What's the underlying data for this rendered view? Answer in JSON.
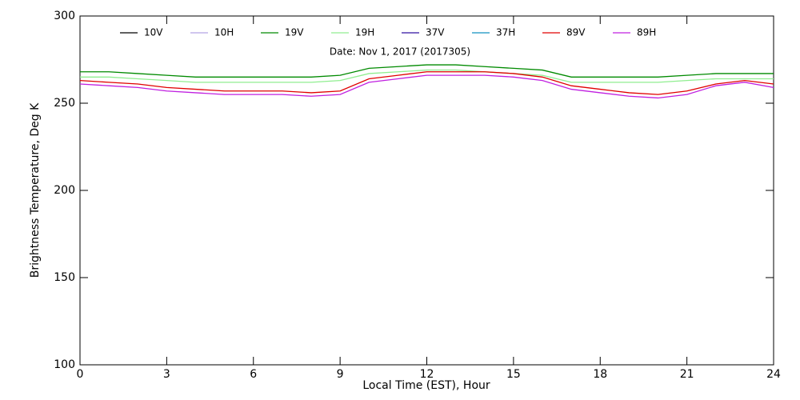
{
  "chart_data": {
    "type": "line",
    "subtitle": "Date: Nov  1, 2017 (2017305)",
    "xlabel": "Local Time (EST), Hour",
    "ylabel": "Brightness Temperature, Deg K",
    "x": [
      0,
      1,
      2,
      3,
      4,
      5,
      6,
      7,
      8,
      9,
      10,
      11,
      12,
      13,
      14,
      15,
      16,
      17,
      18,
      19,
      20,
      21,
      22,
      23,
      24
    ],
    "xlim": [
      0,
      24
    ],
    "xticks": [
      0,
      3,
      6,
      9,
      12,
      15,
      18,
      21,
      24
    ],
    "ylim": [
      100,
      300
    ],
    "yticks": [
      100,
      150,
      200,
      250,
      300
    ],
    "legend": "top",
    "series": [
      {
        "name": "10V",
        "color": "#000000",
        "values": [
          null,
          null,
          null,
          null,
          null,
          null,
          null,
          null,
          null,
          null,
          null,
          null,
          null,
          null,
          null,
          null,
          null,
          null,
          null,
          null,
          null,
          null,
          null,
          null,
          null
        ]
      },
      {
        "name": "10H",
        "color": "#b4a4e4",
        "values": [
          null,
          null,
          null,
          null,
          null,
          null,
          null,
          null,
          null,
          null,
          null,
          null,
          null,
          null,
          null,
          null,
          null,
          null,
          null,
          null,
          null,
          null,
          null,
          null,
          null
        ]
      },
      {
        "name": "19V",
        "color": "#008a00",
        "values": [
          268,
          268,
          267,
          266,
          265,
          265,
          265,
          265,
          265,
          266,
          270,
          271,
          272,
          272,
          271,
          270,
          269,
          265,
          265,
          265,
          265,
          266,
          267,
          267,
          267
        ]
      },
      {
        "name": "19H",
        "color": "#90ee90",
        "values": [
          265,
          265,
          264,
          263,
          262,
          262,
          262,
          262,
          262,
          263,
          267,
          268,
          269,
          269,
          268,
          267,
          266,
          262,
          262,
          262,
          262,
          263,
          264,
          264,
          264
        ]
      },
      {
        "name": "37V",
        "color": "#3010a0",
        "values": [
          null,
          null,
          null,
          null,
          null,
          null,
          null,
          null,
          null,
          null,
          null,
          null,
          null,
          null,
          null,
          null,
          null,
          null,
          null,
          null,
          null,
          null,
          null,
          null,
          null
        ]
      },
      {
        "name": "37H",
        "color": "#1090c0",
        "values": [
          null,
          null,
          null,
          null,
          null,
          null,
          null,
          null,
          null,
          null,
          null,
          null,
          null,
          null,
          null,
          null,
          null,
          null,
          null,
          null,
          null,
          null,
          null,
          null,
          null
        ]
      },
      {
        "name": "89V",
        "color": "#e00000",
        "values": [
          263,
          262,
          261,
          259,
          258,
          257,
          257,
          257,
          256,
          257,
          264,
          266,
          268,
          268,
          268,
          267,
          265,
          260,
          258,
          256,
          255,
          257,
          261,
          263,
          261
        ]
      },
      {
        "name": "89H",
        "color": "#c020e0",
        "values": [
          261,
          260,
          259,
          257,
          256,
          255,
          255,
          255,
          254,
          255,
          262,
          264,
          266,
          266,
          266,
          265,
          263,
          258,
          256,
          254,
          253,
          255,
          260,
          262,
          259
        ]
      }
    ]
  }
}
